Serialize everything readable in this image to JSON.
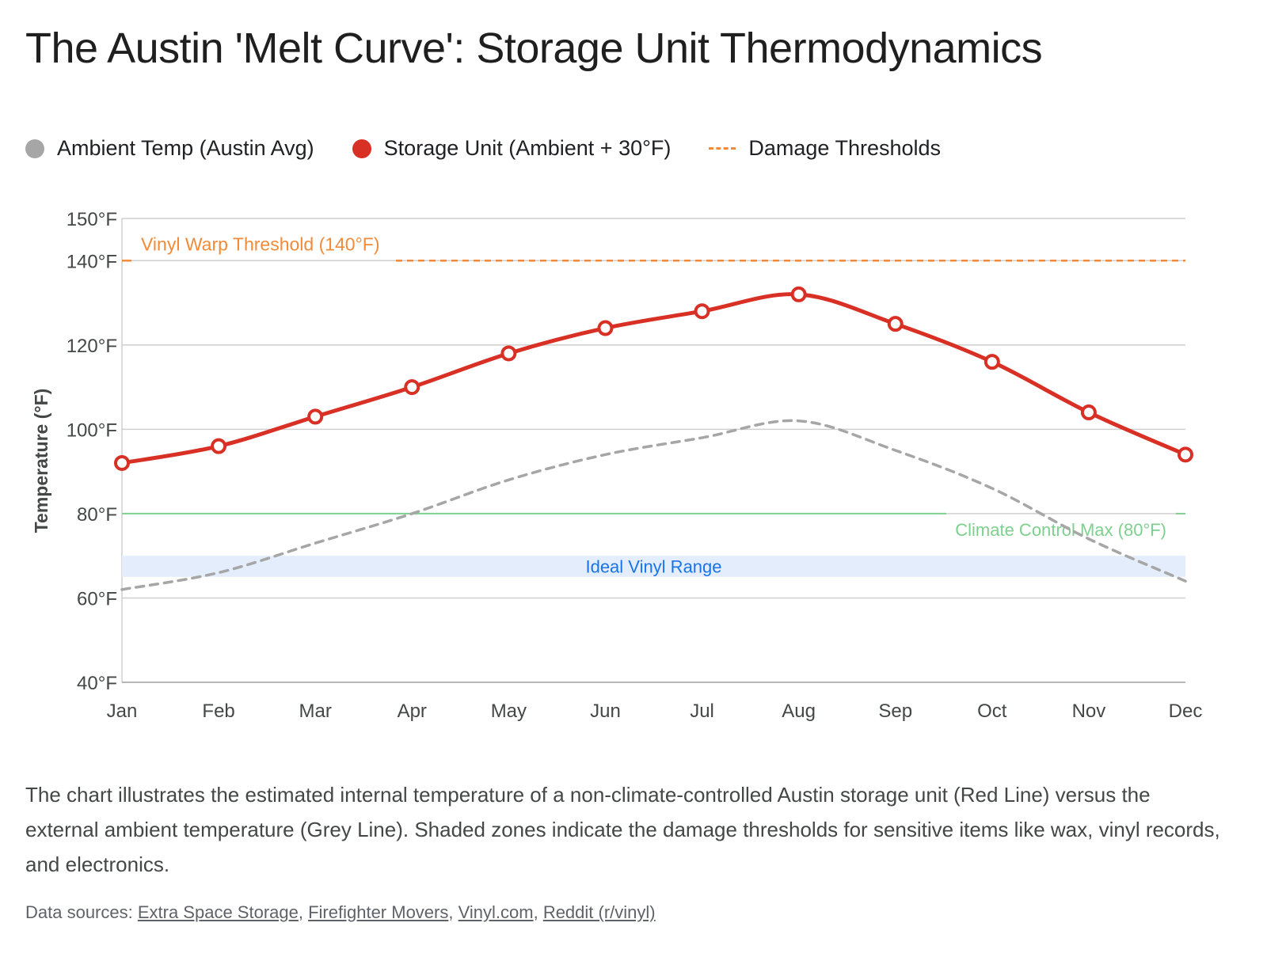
{
  "title": "The Austin 'Melt Curve': Storage Unit Thermodynamics",
  "legend": [
    {
      "label": "Ambient Temp (Austin Avg)",
      "color": "#a6a6a6",
      "kind": "dot"
    },
    {
      "label": "Storage Unit (Ambient + 30°F)",
      "color": "#d93025",
      "kind": "dot"
    },
    {
      "label": "Damage Thresholds",
      "color": "#f28b39",
      "kind": "dash"
    }
  ],
  "chart_data": {
    "type": "line",
    "title": "The Austin 'Melt Curve': Storage Unit Thermodynamics",
    "xlabel": "",
    "ylabel": "Temperature (°F)",
    "categories": [
      "Jan",
      "Feb",
      "Mar",
      "Apr",
      "May",
      "Jun",
      "Jul",
      "Aug",
      "Sep",
      "Oct",
      "Nov",
      "Dec"
    ],
    "ylim": [
      40,
      150
    ],
    "yticks": [
      40,
      60,
      80,
      100,
      120,
      140,
      150
    ],
    "ytick_labels": [
      "40°F",
      "60°F",
      "80°F",
      "100°F",
      "120°F",
      "140°F",
      "150°F"
    ],
    "grid": true,
    "series": [
      {
        "name": "Ambient Temp (Austin Avg)",
        "color": "#a6a6a6",
        "style": "dashed",
        "values": [
          62,
          66,
          73,
          80,
          88,
          94,
          98,
          102,
          95,
          86,
          74,
          64
        ]
      },
      {
        "name": "Storage Unit (Ambient + 30°F)",
        "color": "#d93025",
        "style": "solid",
        "values": [
          92,
          96,
          103,
          110,
          118,
          124,
          128,
          132,
          125,
          116,
          104,
          94
        ]
      }
    ],
    "thresholds": [
      {
        "label": "Vinyl Warp Threshold (140°F)",
        "value": 140,
        "color": "#f28b39",
        "style": "dashed"
      },
      {
        "label": "Climate Control Max (80°F)",
        "value": 80,
        "color": "#7fcf8f",
        "style": "solid"
      }
    ],
    "band": {
      "label": "Ideal Vinyl Range",
      "from": 65,
      "to": 70,
      "color": "#e3edfb",
      "text_color": "#1a73e8"
    }
  },
  "description": "The chart illustrates the estimated internal temperature of a non-climate-controlled Austin storage unit (Red Line) versus the external ambient temperature (Grey Line). Shaded zones indicate the damage thresholds for sensitive items like wax, vinyl records, and electronics.",
  "sources": {
    "prefix": "Data sources: ",
    "links": [
      "Extra Space Storage",
      "Firefighter Movers",
      "Vinyl.com",
      "Reddit (r/vinyl)"
    ],
    "separator": ", "
  }
}
